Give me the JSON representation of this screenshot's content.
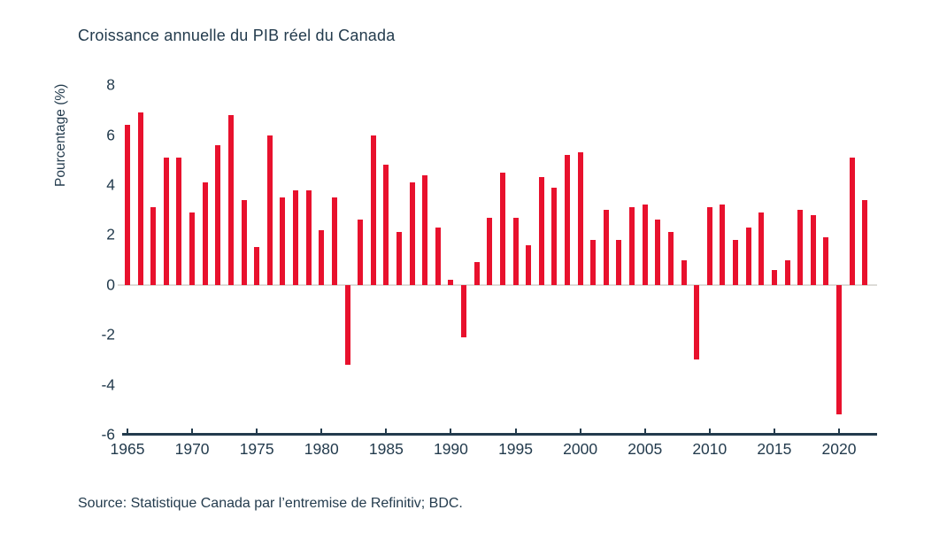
{
  "title": "Croissance annuelle du PIB réel du Canada",
  "source": "Source: Statistique Canada par l’entremise de Refinitiv; BDC.",
  "colors": {
    "bar": "#e8112d",
    "ink": "#233b4d",
    "zero_line": "#dddcd8"
  },
  "chart_data": {
    "type": "bar",
    "title": "Croissance annuelle du PIB réel du Canada",
    "xlabel": "",
    "ylabel": "Pourcentage (%)",
    "ylim": [
      -6,
      8
    ],
    "yticks": [
      8,
      6,
      4,
      2,
      0,
      -2,
      -4,
      -6
    ],
    "xticks": [
      1965,
      1970,
      1975,
      1980,
      1985,
      1990,
      1995,
      2000,
      2005,
      2010,
      2015,
      2020
    ],
    "grid": false,
    "legend": "none",
    "bar_color": "#e8112d",
    "categories": [
      1965,
      1966,
      1967,
      1968,
      1969,
      1970,
      1971,
      1972,
      1973,
      1974,
      1975,
      1976,
      1977,
      1978,
      1979,
      1980,
      1981,
      1982,
      1983,
      1984,
      1985,
      1986,
      1987,
      1988,
      1989,
      1990,
      1991,
      1992,
      1993,
      1994,
      1995,
      1996,
      1997,
      1998,
      1999,
      2000,
      2001,
      2002,
      2003,
      2004,
      2005,
      2006,
      2007,
      2008,
      2009,
      2010,
      2011,
      2012,
      2013,
      2014,
      2015,
      2016,
      2017,
      2018,
      2019,
      2020,
      2021,
      2022
    ],
    "values": [
      6.4,
      6.9,
      3.1,
      5.1,
      5.1,
      2.9,
      4.1,
      5.6,
      6.8,
      3.4,
      1.5,
      6.0,
      3.5,
      3.8,
      3.8,
      2.2,
      3.5,
      -3.2,
      2.6,
      6.0,
      4.8,
      2.1,
      4.1,
      4.4,
      2.3,
      0.2,
      -2.1,
      0.9,
      2.7,
      4.5,
      2.7,
      1.6,
      4.3,
      3.9,
      5.2,
      5.3,
      1.8,
      3.0,
      1.8,
      3.1,
      3.2,
      2.6,
      2.1,
      1.0,
      -3.0,
      3.1,
      3.2,
      1.8,
      2.3,
      2.9,
      0.6,
      1.0,
      3.0,
      2.8,
      1.9,
      -5.2,
      5.1,
      3.4
    ]
  }
}
